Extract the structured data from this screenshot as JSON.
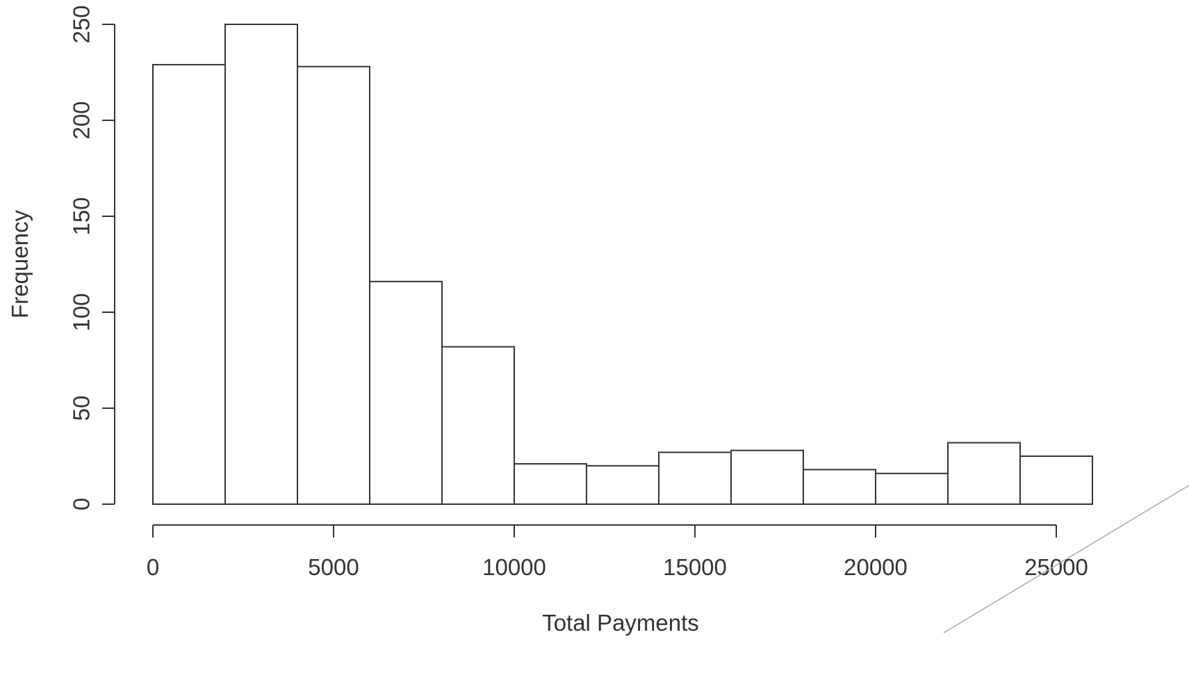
{
  "chart_data": {
    "type": "bar",
    "title": "",
    "xlabel": "Total Payments",
    "ylabel": "Frequency",
    "bin_width": 2000,
    "bins": [
      {
        "start": 0,
        "end": 2000,
        "count": 229
      },
      {
        "start": 2000,
        "end": 4000,
        "count": 250
      },
      {
        "start": 4000,
        "end": 6000,
        "count": 228
      },
      {
        "start": 6000,
        "end": 8000,
        "count": 116
      },
      {
        "start": 8000,
        "end": 10000,
        "count": 82
      },
      {
        "start": 10000,
        "end": 12000,
        "count": 21
      },
      {
        "start": 12000,
        "end": 14000,
        "count": 20
      },
      {
        "start": 14000,
        "end": 16000,
        "count": 27
      },
      {
        "start": 16000,
        "end": 18000,
        "count": 28
      },
      {
        "start": 18000,
        "end": 20000,
        "count": 18
      },
      {
        "start": 20000,
        "end": 22000,
        "count": 16
      },
      {
        "start": 22000,
        "end": 24000,
        "count": 32
      },
      {
        "start": 24000,
        "end": 26000,
        "count": 25
      }
    ],
    "xticks": [
      0,
      5000,
      10000,
      15000,
      20000,
      25000
    ],
    "xtick_labels": [
      "0",
      "5000",
      "10000",
      "15000",
      "20000",
      "25000"
    ],
    "yticks": [
      0,
      50,
      100,
      150,
      200,
      250
    ],
    "ytick_labels": [
      "0",
      "50",
      "100",
      "150",
      "200",
      "250"
    ],
    "xlim": [
      0,
      25000
    ],
    "ylim": [
      0,
      250
    ],
    "grid": false,
    "legend": "none",
    "colors": {
      "bar_fill": "#ffffff",
      "bar_stroke": "#333333",
      "axis": "#333333",
      "text": "#333333"
    }
  }
}
